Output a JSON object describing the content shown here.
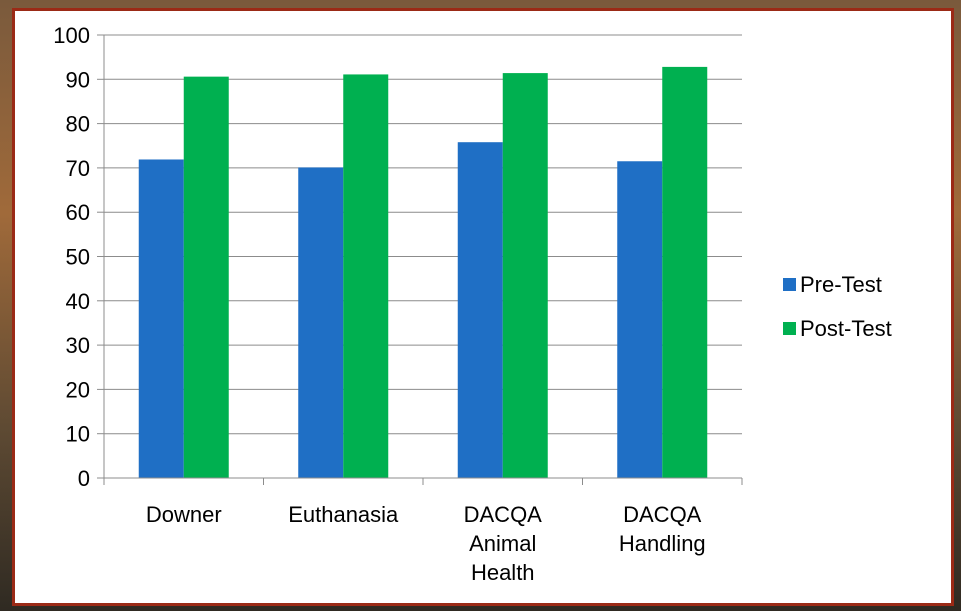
{
  "chart_data": {
    "type": "bar",
    "categories": [
      [
        "Downer"
      ],
      [
        "Euthanasia"
      ],
      [
        "DACQA",
        "Animal",
        "Health"
      ],
      [
        "DACQA",
        "Handling"
      ]
    ],
    "series": [
      {
        "name": "Pre-Test",
        "color": "#1f6fc5",
        "values": [
          71.9,
          70.1,
          75.8,
          71.5
        ]
      },
      {
        "name": "Post-Test",
        "color": "#00b050",
        "values": [
          90.6,
          91.1,
          91.4,
          92.8
        ]
      }
    ],
    "ylim": [
      0,
      100
    ],
    "yticks": [
      "0",
      "10",
      "20",
      "30",
      "40",
      "50",
      "60",
      "70",
      "80",
      "90",
      "100"
    ],
    "grid": true,
    "legend_position": "right"
  }
}
